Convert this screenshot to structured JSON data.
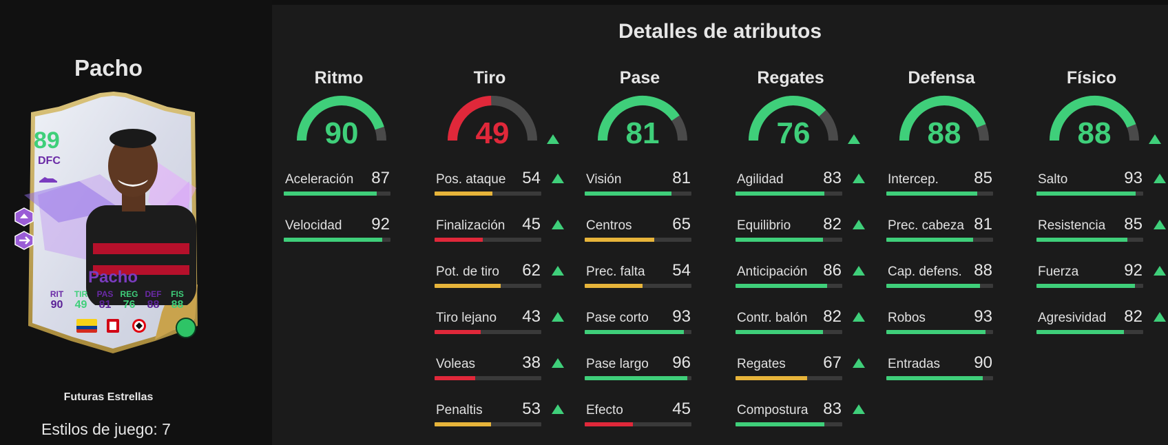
{
  "player": {
    "name": "Pacho",
    "rating": "89",
    "position": "DFC",
    "version": "Futuras Estrellas",
    "playstyles_label": "Estilos de juego: 7",
    "card_stats": [
      {
        "label": "RIT",
        "value": "90"
      },
      {
        "label": "TIR",
        "value": "49"
      },
      {
        "label": "PAS",
        "value": "81"
      },
      {
        "label": "REG",
        "value": "76"
      },
      {
        "label": "DEF",
        "value": "88"
      },
      {
        "label": "FIS",
        "value": "88"
      }
    ]
  },
  "panel_title": "Detalles de atributos",
  "colors": {
    "high": "#3fcf7a",
    "mid": "#e7b43a",
    "low": "#e0283a",
    "track": "#3a3a3a"
  },
  "categories": [
    {
      "name": "Ritmo",
      "value": 90,
      "upgraded": false,
      "stats": [
        {
          "label": "Aceleración",
          "value": 87,
          "upgraded": false
        },
        {
          "label": "Velocidad",
          "value": 92,
          "upgraded": false
        }
      ]
    },
    {
      "name": "Tiro",
      "value": 49,
      "upgraded": true,
      "stats": [
        {
          "label": "Pos. ataque",
          "value": 54,
          "upgraded": true
        },
        {
          "label": "Finalización",
          "value": 45,
          "upgraded": true
        },
        {
          "label": "Pot. de tiro",
          "value": 62,
          "upgraded": true
        },
        {
          "label": "Tiro lejano",
          "value": 43,
          "upgraded": true
        },
        {
          "label": "Voleas",
          "value": 38,
          "upgraded": true
        },
        {
          "label": "Penaltis",
          "value": 53,
          "upgraded": true
        }
      ]
    },
    {
      "name": "Pase",
      "value": 81,
      "upgraded": false,
      "stats": [
        {
          "label": "Visión",
          "value": 81,
          "upgraded": false
        },
        {
          "label": "Centros",
          "value": 65,
          "upgraded": false
        },
        {
          "label": "Prec. falta",
          "value": 54,
          "upgraded": false
        },
        {
          "label": "Pase corto",
          "value": 93,
          "upgraded": false
        },
        {
          "label": "Pase largo",
          "value": 96,
          "upgraded": false
        },
        {
          "label": "Efecto",
          "value": 45,
          "upgraded": false
        }
      ]
    },
    {
      "name": "Regates",
      "value": 76,
      "upgraded": true,
      "stats": [
        {
          "label": "Agilidad",
          "value": 83,
          "upgraded": true
        },
        {
          "label": "Equilibrio",
          "value": 82,
          "upgraded": true
        },
        {
          "label": "Anticipación",
          "value": 86,
          "upgraded": true
        },
        {
          "label": "Contr. balón",
          "value": 82,
          "upgraded": true
        },
        {
          "label": "Regates",
          "value": 67,
          "upgraded": true
        },
        {
          "label": "Compostura",
          "value": 83,
          "upgraded": true
        }
      ]
    },
    {
      "name": "Defensa",
      "value": 88,
      "upgraded": false,
      "stats": [
        {
          "label": "Intercep.",
          "value": 85,
          "upgraded": false
        },
        {
          "label": "Prec. cabeza",
          "value": 81,
          "upgraded": false
        },
        {
          "label": "Cap. defens.",
          "value": 88,
          "upgraded": false
        },
        {
          "label": "Robos",
          "value": 93,
          "upgraded": false
        },
        {
          "label": "Entradas",
          "value": 90,
          "upgraded": false
        }
      ]
    },
    {
      "name": "Físico",
      "value": 88,
      "upgraded": true,
      "stats": [
        {
          "label": "Salto",
          "value": 93,
          "upgraded": true
        },
        {
          "label": "Resistencia",
          "value": 85,
          "upgraded": true
        },
        {
          "label": "Fuerza",
          "value": 92,
          "upgraded": true
        },
        {
          "label": "Agresividad",
          "value": 82,
          "upgraded": true
        }
      ]
    }
  ]
}
